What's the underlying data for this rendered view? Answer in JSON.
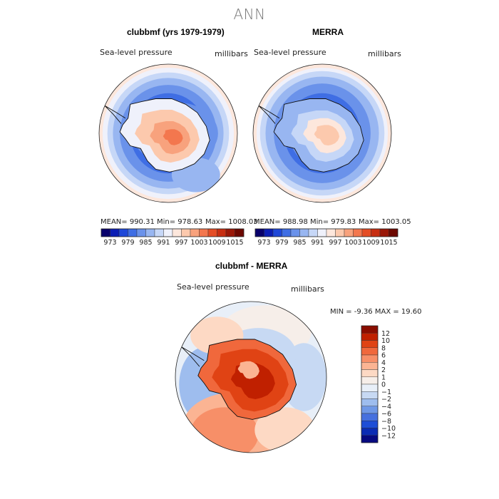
{
  "title": "ANN",
  "chart_data": [
    {
      "type": "heatmap",
      "title": "clubbmf (yrs 1979-1979)",
      "variable_label": "Sea-level pressure",
      "units_label": "millibars",
      "stats": {
        "mean": "MEAN= 990.31",
        "min": "Min= 978.63",
        "max": "Max= 1008.03"
      },
      "colorbar_ticks": [
        "973",
        "979",
        "985",
        "991",
        "997",
        "1003",
        "1009",
        "1015"
      ]
    },
    {
      "type": "heatmap",
      "title": "MERRA",
      "variable_label": "Sea-level pressure",
      "units_label": "millibars",
      "stats": {
        "mean": "MEAN= 988.98",
        "min": "Min= 979.83",
        "max": "Max= 1003.05"
      },
      "colorbar_ticks": [
        "973",
        "979",
        "985",
        "991",
        "997",
        "1003",
        "1009",
        "1015"
      ]
    },
    {
      "type": "heatmap",
      "title": "clubbmf - MERRA",
      "variable_label": "Sea-level pressure",
      "units_label": "millibars",
      "stats_line": "MIN =  -9.36 MAX =  19.60",
      "colorbar_ticks": [
        "12",
        "10",
        "8",
        "6",
        "4",
        "2",
        "1",
        "0",
        "−1",
        "−2",
        "−4",
        "−6",
        "−8",
        "−10",
        "−12"
      ]
    }
  ],
  "palette": {
    "abs": [
      "#08006b",
      "#0c1eb4",
      "#1f48d8",
      "#3f6ee4",
      "#6a92ea",
      "#98b6f1",
      "#c6d7f7",
      "#eff1fb",
      "#fde7dc",
      "#fcc9ad",
      "#f8a27d",
      "#f3774e",
      "#e44d26",
      "#c72e12",
      "#9a1808",
      "#6c0800"
    ],
    "diff": [
      "#8a0d00",
      "#c02000",
      "#e04314",
      "#f0683c",
      "#f78f68",
      "#fbb493",
      "#fdd9c4",
      "#f6eee9",
      "#e8eff8",
      "#c7d9f3",
      "#9ebdee",
      "#6f98e6",
      "#4670de",
      "#1e4ed6",
      "#0b2cb4",
      "#070a80"
    ],
    "land_outline": "#111111",
    "ocean": "#6a92ea"
  }
}
